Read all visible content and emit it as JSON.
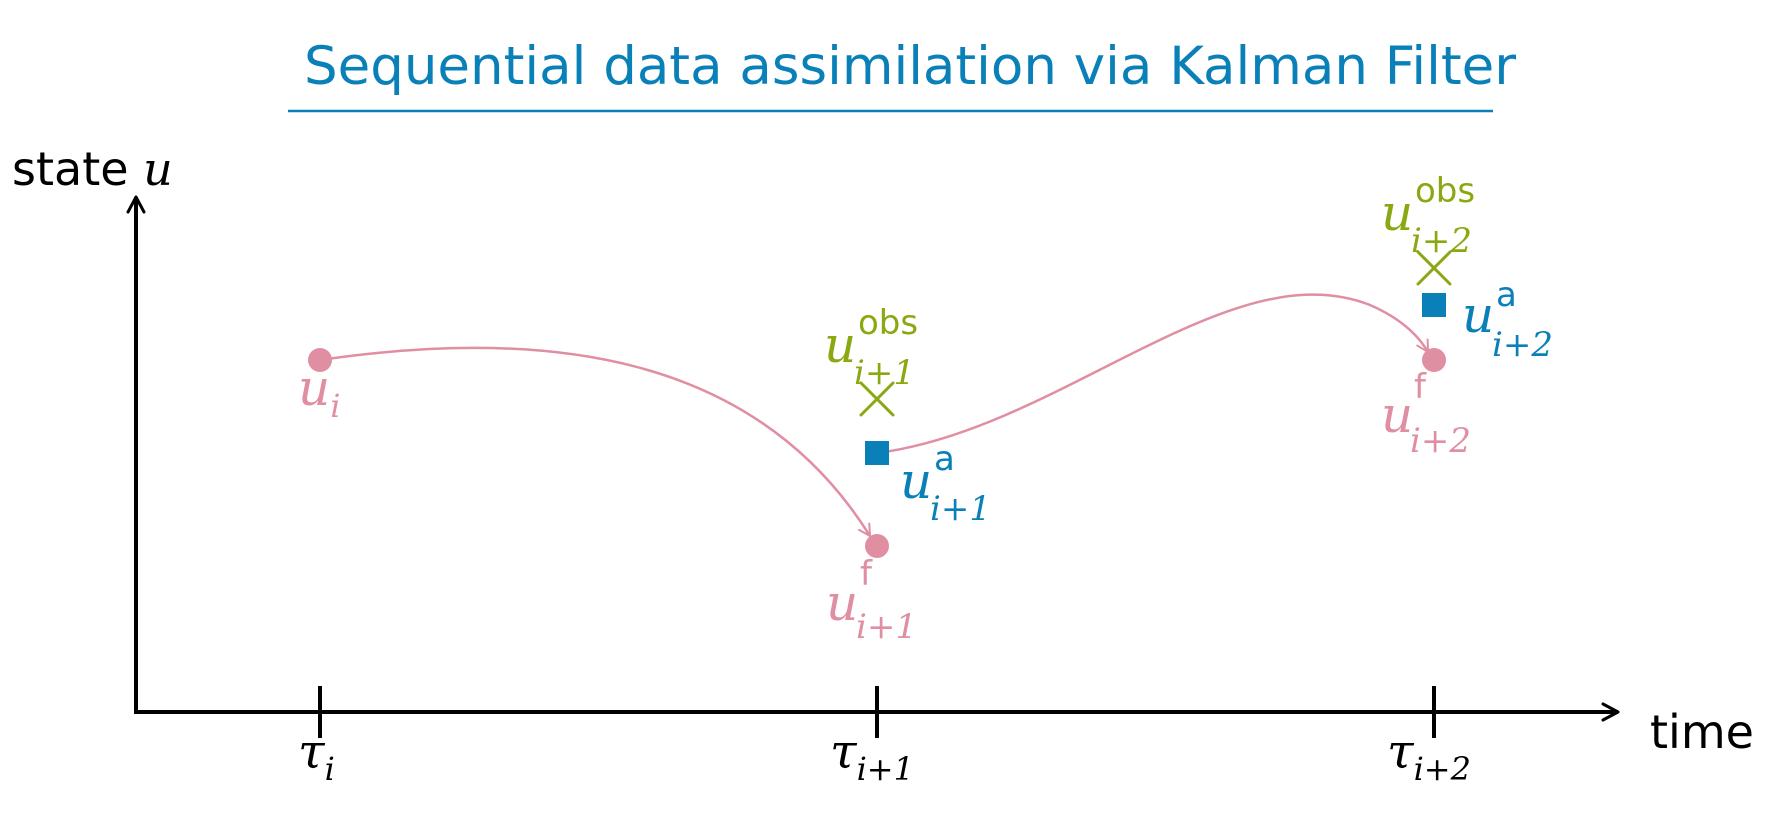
{
  "title": "Sequential data assimilation via Kalman Filter",
  "axes": {
    "y_label_text": "state ",
    "y_label_var": "u",
    "x_label": "time"
  },
  "ticks": [
    {
      "base": "τ",
      "sub": "i"
    },
    {
      "base": "τ",
      "sub": "i+1"
    },
    {
      "base": "τ",
      "sub": "i+2"
    }
  ],
  "labels": {
    "u_i": {
      "base": "u",
      "sub": "i"
    },
    "forecast_1": {
      "base": "u",
      "sup": "f",
      "sub": "i+1"
    },
    "forecast_2": {
      "base": "u",
      "sup": "f",
      "sub": "i+2"
    },
    "analysis_1": {
      "base": "u",
      "sup": "a",
      "sub": "i+1"
    },
    "analysis_2": {
      "base": "u",
      "sup": "a",
      "sub": "i+2"
    },
    "obs_1": {
      "base": "u",
      "sup": "obs",
      "sub": "i+1"
    },
    "obs_2": {
      "base": "u",
      "sup": "obs",
      "sub": "i+2"
    }
  },
  "colors": {
    "title": "#0a80b8",
    "forecast": "#e08ea2",
    "analysis": "#0a80b8",
    "observation": "#8aa812",
    "axis": "#000000"
  }
}
